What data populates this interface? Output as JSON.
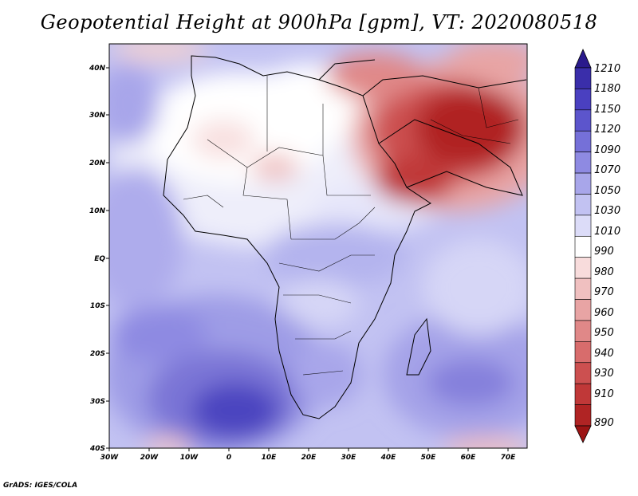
{
  "title": "Geopotential Height at 900hPa [gpm], VT: 2020080518",
  "credit": "GrADS: IGES/COLA",
  "map": {
    "lon_range": [
      -30,
      75
    ],
    "lat_range": [
      -40,
      45
    ],
    "x_ticks": [
      "30W",
      "20W",
      "10W",
      "0",
      "10E",
      "20E",
      "30E",
      "40E",
      "50E",
      "60E",
      "70E"
    ],
    "y_ticks": [
      "40S",
      "30S",
      "20S",
      "10S",
      "EQ",
      "10N",
      "20N",
      "30N",
      "40N"
    ]
  },
  "colorbar": {
    "levels": [
      "1210",
      "1180",
      "1150",
      "1120",
      "1090",
      "1070",
      "1050",
      "1030",
      "1010",
      "990",
      "980",
      "970",
      "960",
      "950",
      "940",
      "930",
      "910",
      "890"
    ],
    "colors": [
      "#2a1a8c",
      "#3a2eaa",
      "#4a40c0",
      "#5c55cc",
      "#7570d8",
      "#8e8ae2",
      "#a8a6ea",
      "#c2c2f2",
      "#dcdcf8",
      "#ffffff",
      "#f8dcdc",
      "#f0c0c0",
      "#e8a4a4",
      "#e08888",
      "#d86c6c",
      "#cc5050",
      "#c03838",
      "#b02424",
      "#9c1414"
    ]
  }
}
